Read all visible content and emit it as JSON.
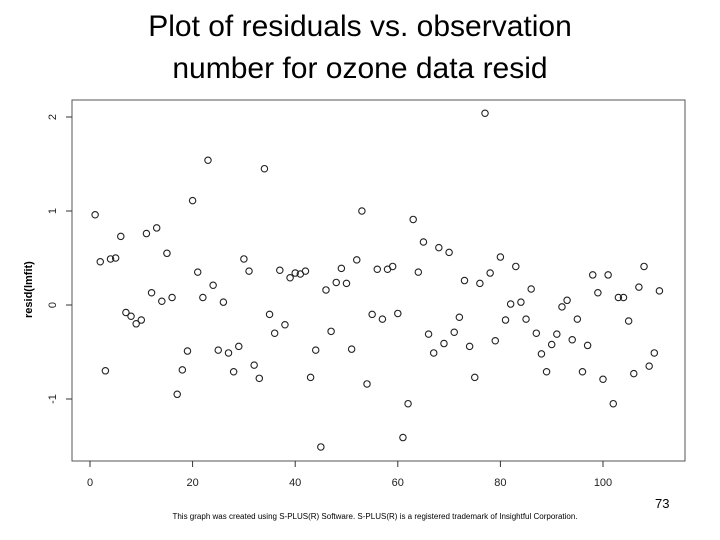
{
  "chart_data": {
    "type": "scatter",
    "title_line1": "Plot of residuals vs. observation",
    "title_line2": "number for ozone data resid",
    "xlabel": "",
    "ylabel": "resid(lmfit)",
    "xlim": [
      0,
      111
    ],
    "ylim": [
      -1.5,
      2.05
    ],
    "xticks": [
      0,
      20,
      40,
      60,
      80,
      100
    ],
    "yticks": [
      -1,
      0,
      1,
      2
    ],
    "grid": false,
    "x": [
      1,
      2,
      3,
      4,
      5,
      6,
      7,
      8,
      9,
      10,
      11,
      12,
      13,
      14,
      15,
      16,
      17,
      18,
      19,
      20,
      21,
      22,
      23,
      24,
      25,
      26,
      27,
      28,
      29,
      30,
      31,
      32,
      33,
      34,
      35,
      36,
      37,
      38,
      39,
      40,
      41,
      42,
      43,
      44,
      45,
      46,
      47,
      48,
      49,
      50,
      51,
      52,
      53,
      54,
      55,
      56,
      57,
      58,
      59,
      60,
      61,
      62,
      63,
      64,
      65,
      66,
      67,
      68,
      69,
      70,
      71,
      72,
      73,
      74,
      75,
      76,
      77,
      78,
      79,
      80,
      81,
      82,
      83,
      84,
      85,
      86,
      87,
      88,
      89,
      90,
      91,
      92,
      93,
      94,
      95,
      96,
      97,
      98,
      99,
      100,
      101,
      102,
      103,
      104,
      105,
      106,
      107,
      108,
      109,
      110,
      111
    ],
    "y": [
      0.96,
      0.46,
      -0.7,
      0.49,
      0.5,
      0.73,
      -0.08,
      -0.12,
      -0.2,
      -0.16,
      0.76,
      0.13,
      0.82,
      0.04,
      0.55,
      0.08,
      -0.95,
      -0.69,
      -0.49,
      1.11,
      0.35,
      0.08,
      1.54,
      0.21,
      -0.48,
      0.03,
      -0.51,
      -0.71,
      -0.44,
      0.49,
      0.36,
      -0.64,
      -0.78,
      1.45,
      -0.1,
      -0.3,
      0.37,
      -0.21,
      0.29,
      0.34,
      0.33,
      0.36,
      -0.77,
      -0.48,
      -1.51,
      0.16,
      -0.28,
      0.24,
      0.39,
      0.23,
      -0.47,
      0.48,
      1.0,
      -0.84,
      -0.1,
      0.38,
      -0.15,
      0.38,
      0.41,
      -0.09,
      -1.41,
      -1.05,
      0.91,
      0.35,
      0.67,
      -0.31,
      -0.51,
      0.61,
      -0.41,
      0.56,
      -0.29,
      -0.13,
      0.26,
      -0.44,
      -0.77,
      0.23,
      2.04,
      0.34,
      -0.38,
      0.51,
      -0.16,
      0.01,
      0.41,
      0.03,
      -0.15,
      0.17,
      -0.3,
      -0.52,
      -0.71,
      -0.42,
      -0.31,
      -0.02,
      0.05,
      -0.37,
      -0.15,
      -0.71,
      -0.43,
      0.32,
      0.13,
      -0.79,
      0.32,
      -1.05,
      0.08,
      0.08,
      -0.17,
      -0.73,
      0.19,
      0.41,
      -0.65,
      -0.51,
      0.15
    ]
  },
  "footer": {
    "page_number": "73",
    "credit": "This graph was created using S-PLUS(R) Software. S-PLUS(R) is a registered trademark of Insightful Corporation."
  }
}
